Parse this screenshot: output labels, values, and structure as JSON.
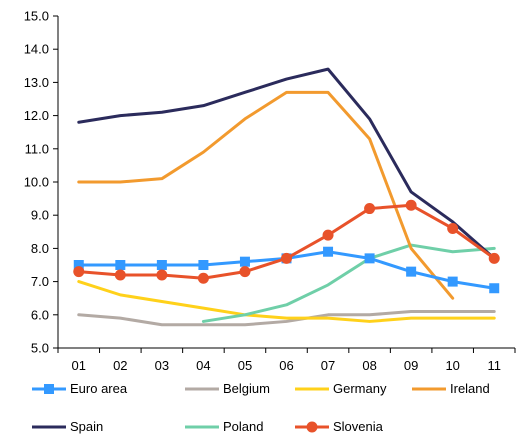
{
  "chart_data": {
    "type": "line",
    "title": "",
    "xlabel": "",
    "ylabel": "",
    "categories": [
      "01",
      "02",
      "03",
      "04",
      "05",
      "06",
      "07",
      "08",
      "09",
      "10",
      "11"
    ],
    "y_ticks": [
      "5.0",
      "6.0",
      "7.0",
      "8.0",
      "9.0",
      "10.0",
      "11.0",
      "12.0",
      "13.0",
      "14.0",
      "15.0"
    ],
    "ylim": [
      5.0,
      15.0
    ],
    "grid": false,
    "legend_position": "bottom",
    "series": [
      {
        "name": "Euro area",
        "color": "#3399ff",
        "marker": "square",
        "values": [
          7.5,
          7.5,
          7.5,
          7.5,
          7.6,
          7.7,
          7.9,
          7.7,
          7.3,
          7.0,
          6.8
        ]
      },
      {
        "name": "Belgium",
        "color": "#b3aaa4",
        "marker": "none",
        "values": [
          6.0,
          5.9,
          5.7,
          5.7,
          5.7,
          5.8,
          6.0,
          6.0,
          6.1,
          6.1,
          6.1
        ]
      },
      {
        "name": "Germany",
        "color": "#ffd11a",
        "marker": "none",
        "values": [
          7.0,
          6.6,
          6.4,
          6.2,
          6.0,
          5.9,
          5.9,
          5.8,
          5.9,
          5.9,
          5.9
        ]
      },
      {
        "name": "Ireland",
        "color": "#f29a2e",
        "marker": "none",
        "values": [
          10.0,
          10.0,
          10.1,
          10.9,
          11.9,
          12.7,
          12.7,
          11.3,
          8.0,
          6.5,
          null
        ]
      },
      {
        "name": "Spain",
        "color": "#2b2b5c",
        "marker": "none",
        "values": [
          11.8,
          12.0,
          12.1,
          12.3,
          12.7,
          13.1,
          13.4,
          11.9,
          9.7,
          8.8,
          7.7
        ]
      },
      {
        "name": "Poland",
        "color": "#6fcfa8",
        "marker": "none",
        "values": [
          null,
          null,
          null,
          5.8,
          6.0,
          6.3,
          6.9,
          7.7,
          8.1,
          7.9,
          8.0
        ]
      },
      {
        "name": "Slovenia",
        "color": "#e8522a",
        "marker": "circle",
        "values": [
          7.3,
          7.2,
          7.2,
          7.1,
          7.3,
          7.7,
          8.4,
          9.2,
          9.3,
          8.6,
          7.7
        ]
      }
    ]
  }
}
